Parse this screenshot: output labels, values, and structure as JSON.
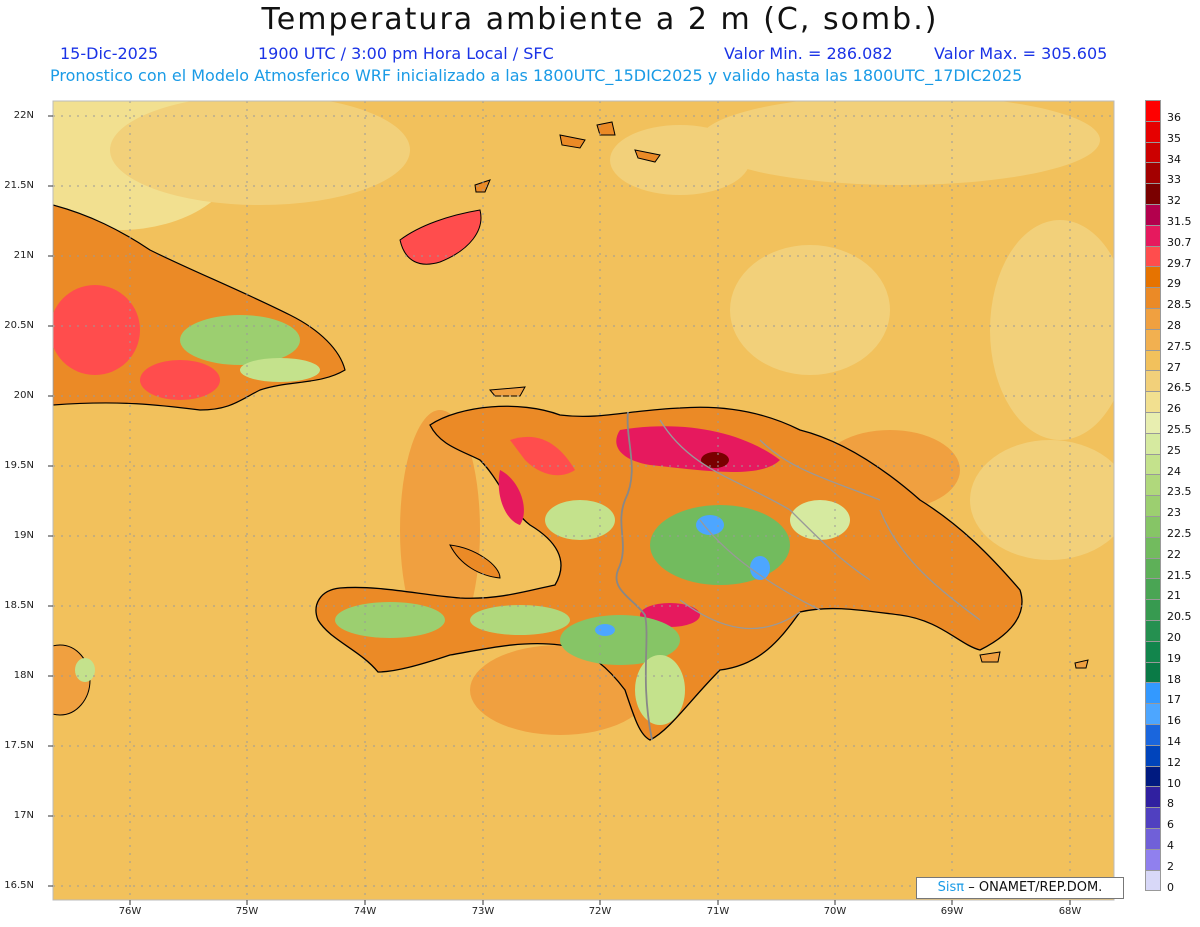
{
  "title": "Temperatura ambiente a 2 m (C, somb.)",
  "date": "15-Dic-2025",
  "time": "1900 UTC / 3:00 pm Hora Local / SFC",
  "valor_min": "Valor Min. = 286.082",
  "valor_max": "Valor Max. = 305.605",
  "forecast_line": "Pronostico con el Modelo Atmosferico WRF inicializado a las 1800UTC_15DIC2025 y valido hasta las  1800UTC_17DIC2025",
  "lat_labels": [
    "22N",
    "21.5N",
    "21N",
    "20.5N",
    "20N",
    "19.5N",
    "19N",
    "18.5N",
    "18N",
    "17.5N",
    "17N",
    "16.5N"
  ],
  "lon_labels": [
    "76W",
    "75W",
    "74W",
    "73W",
    "72W",
    "71W",
    "70W",
    "69W",
    "68W"
  ],
  "colorbar": {
    "labels": [
      "36",
      "35",
      "34",
      "33",
      "32",
      "31.5",
      "30.7",
      "29.7",
      "29",
      "28.5",
      "28",
      "27.5",
      "27",
      "26.5",
      "26",
      "25.5",
      "25",
      "24",
      "23.5",
      "23",
      "22.5",
      "22",
      "21.5",
      "21",
      "20.5",
      "20",
      "19",
      "18",
      "17",
      "16",
      "14",
      "12",
      "10",
      "8",
      "6",
      "4",
      "2",
      "0"
    ],
    "colors": [
      "#ff0000",
      "#e60000",
      "#cc0000",
      "#a30000",
      "#7a0000",
      "#b3004d",
      "#e6195e",
      "#ff4d4d",
      "#e67300",
      "#eb8a26",
      "#f0a040",
      "#f2b050",
      "#f2c15c",
      "#f2d07a",
      "#f2e090",
      "#e8eeb0",
      "#d6eaa0",
      "#c4e28c",
      "#b0d87c",
      "#9ccf70",
      "#86c566",
      "#72bb5e",
      "#5eb058",
      "#4aa554",
      "#379a50",
      "#259050",
      "#12854c",
      "#0a7a46",
      "#3399ff",
      "#4da6ff",
      "#1a66dd",
      "#0044bb",
      "#001a80",
      "#3020a0",
      "#5040c0",
      "#7060d8",
      "#9080ee",
      "#d8d8f8"
    ]
  },
  "credit": {
    "sis": "Sisπ",
    "rest": "– ONAMET/REP.DOM."
  }
}
